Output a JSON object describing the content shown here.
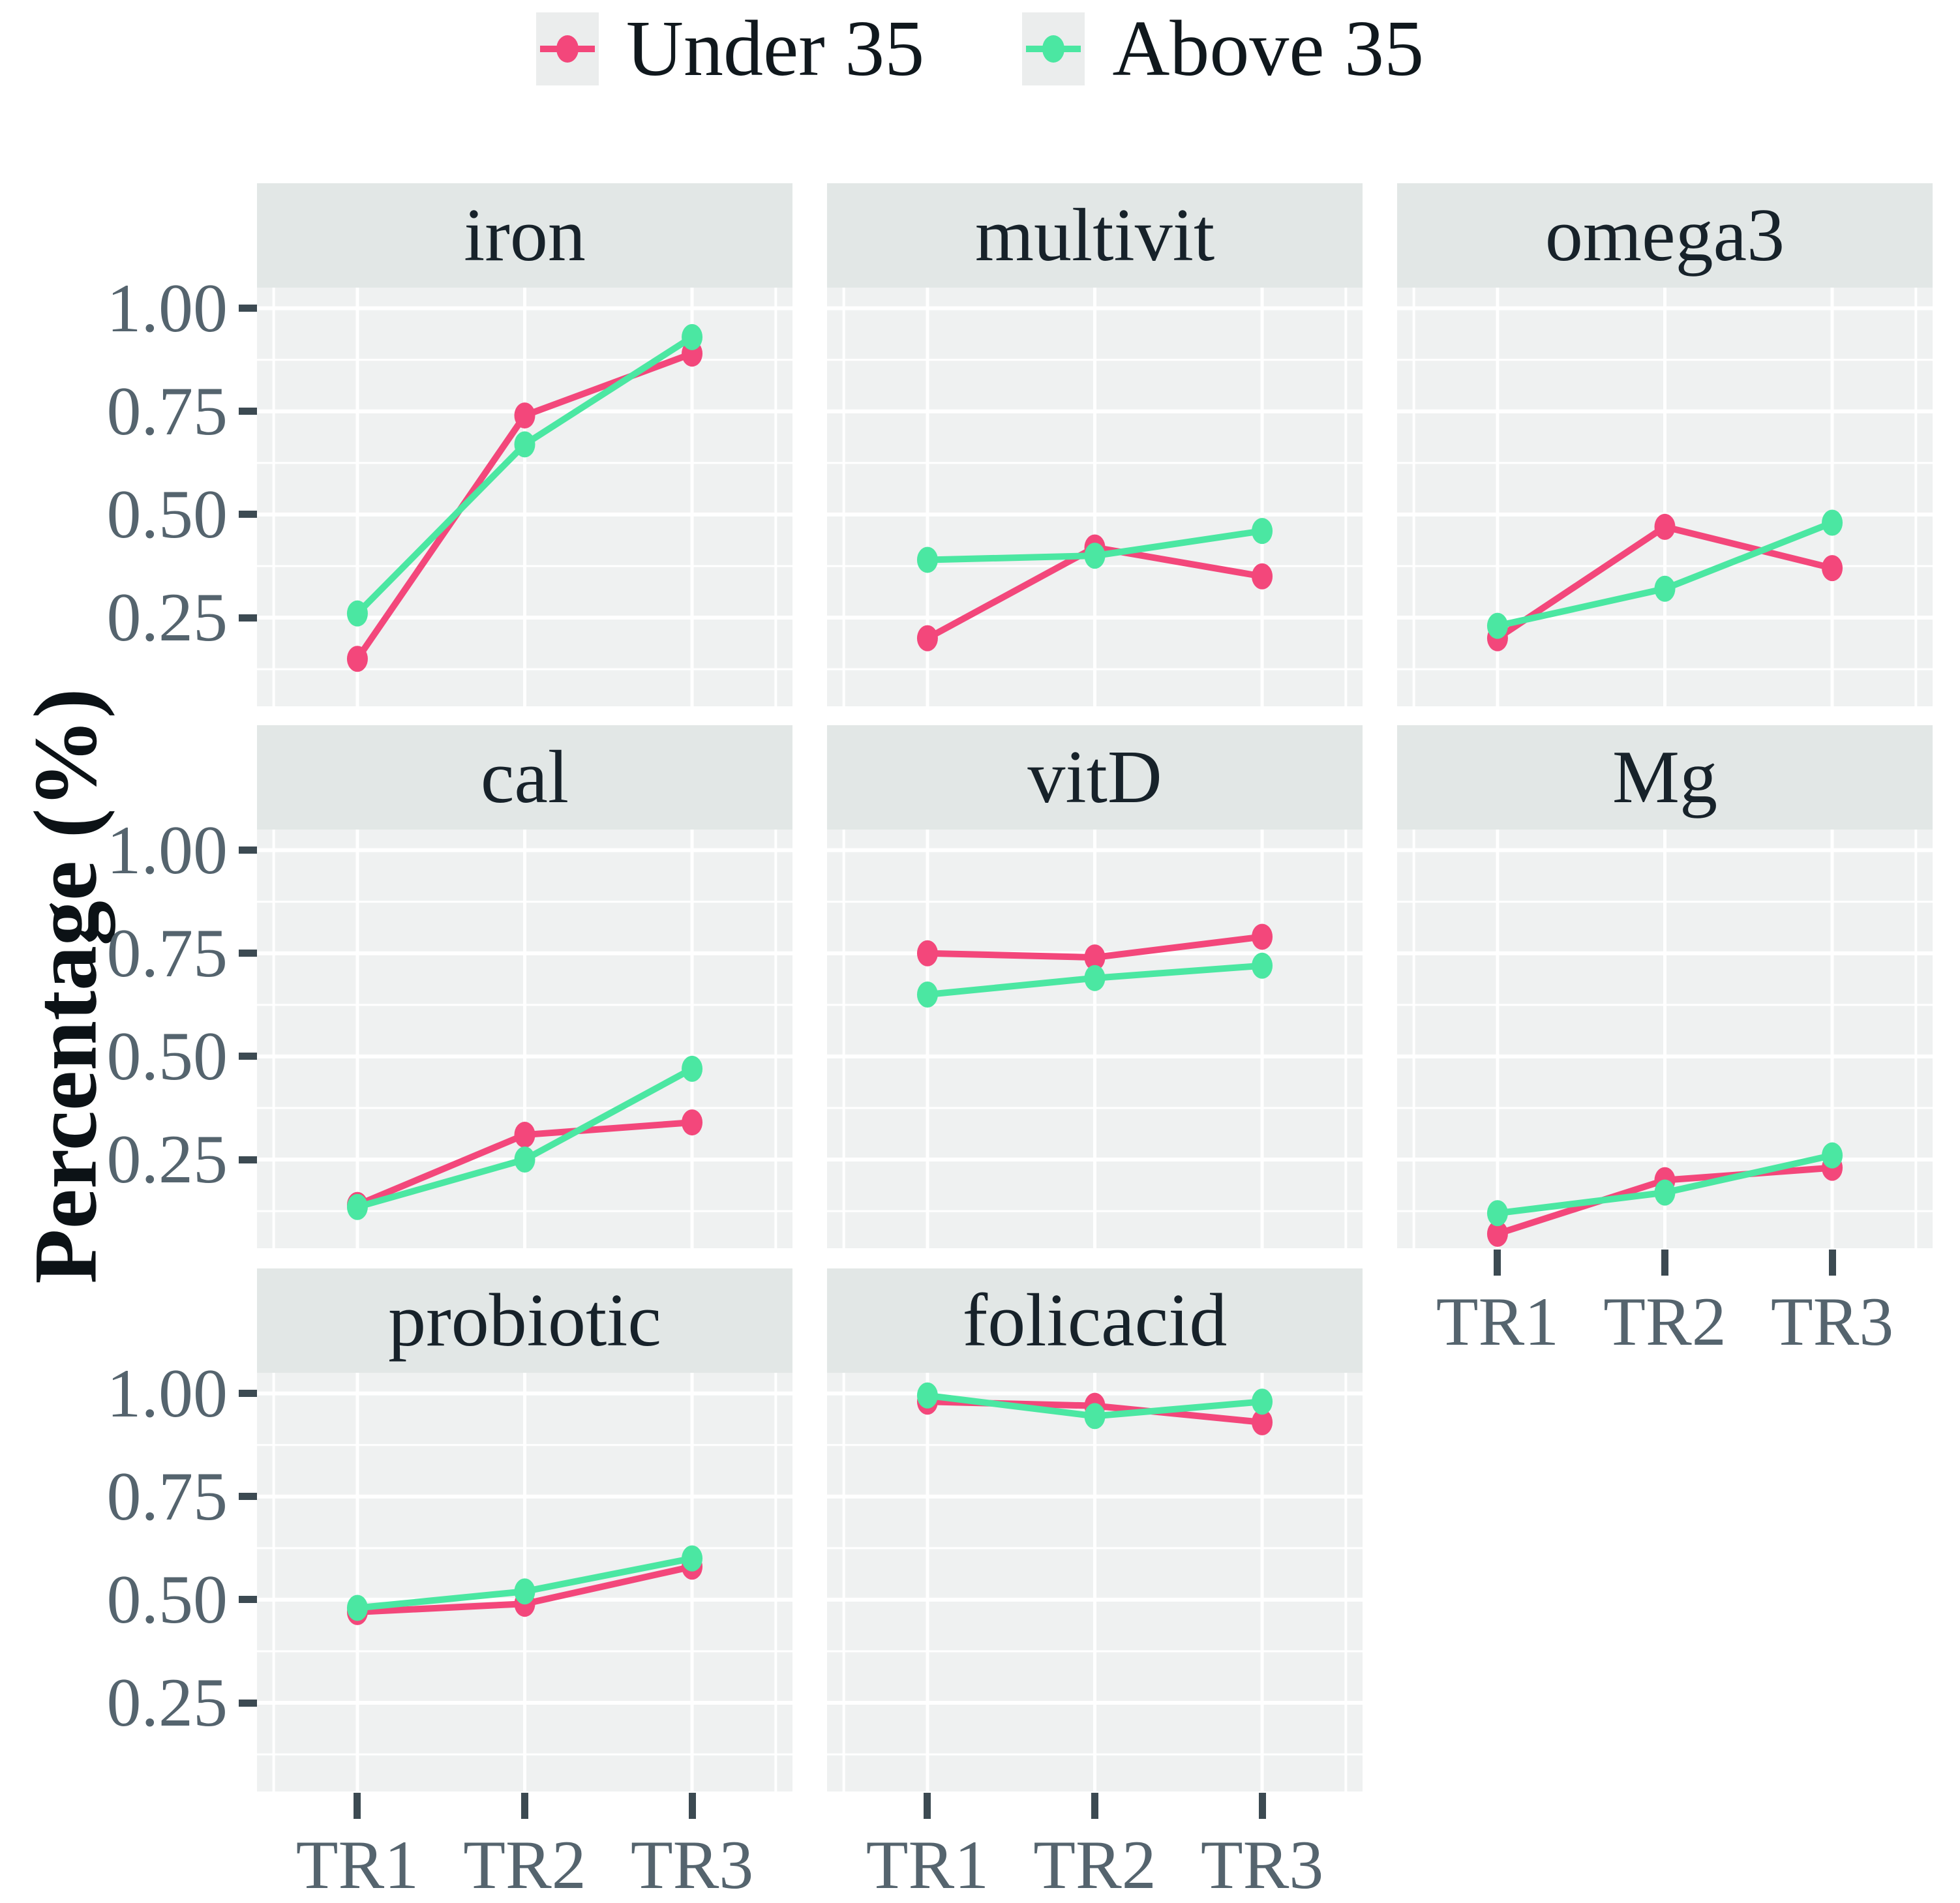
{
  "chart_data": {
    "type": "line",
    "title": "",
    "ylabel": "Percentage (%)",
    "xlabel": "",
    "categories": [
      "TR1",
      "TR2",
      "TR3"
    ],
    "y_axis": {
      "tick_values": [
        1.0,
        0.75,
        0.5,
        0.25
      ],
      "tick_labels": [
        "1.00",
        "0.75",
        "0.50",
        "0.25"
      ],
      "minor_gridlines": [
        0.875,
        0.625,
        0.375,
        0.125
      ],
      "range": [
        0.035,
        1.05
      ],
      "grid": true
    },
    "legend": {
      "position": "top-center",
      "entries": [
        {
          "label": "Under 35",
          "color": "#F3477B"
        },
        {
          "label": "Above 35",
          "color": "#4BE7A2"
        }
      ]
    },
    "facets": [
      {
        "title": "iron",
        "row": 0,
        "col": 0,
        "show_y_axis": true,
        "show_x_axis": false,
        "series": [
          {
            "name": "Under 35",
            "values": [
              0.15,
              0.74,
              0.89
            ]
          },
          {
            "name": "Above 35",
            "values": [
              0.26,
              0.67,
              0.93
            ]
          }
        ]
      },
      {
        "title": "multivit",
        "row": 0,
        "col": 1,
        "show_y_axis": false,
        "show_x_axis": false,
        "series": [
          {
            "name": "Under 35",
            "values": [
              0.2,
              0.42,
              0.35
            ]
          },
          {
            "name": "Above 35",
            "values": [
              0.39,
              0.4,
              0.46
            ]
          }
        ]
      },
      {
        "title": "omega3",
        "row": 0,
        "col": 2,
        "show_y_axis": false,
        "show_x_axis": false,
        "series": [
          {
            "name": "Under 35",
            "values": [
              0.2,
              0.47,
              0.37
            ]
          },
          {
            "name": "Above 35",
            "values": [
              0.23,
              0.32,
              0.48
            ]
          }
        ]
      },
      {
        "title": "cal",
        "row": 1,
        "col": 0,
        "show_y_axis": true,
        "show_x_axis": false,
        "series": [
          {
            "name": "Under 35",
            "values": [
              0.14,
              0.31,
              0.34
            ]
          },
          {
            "name": "Above 35",
            "values": [
              0.135,
              0.25,
              0.47
            ]
          }
        ]
      },
      {
        "title": "vitD",
        "row": 1,
        "col": 1,
        "show_y_axis": false,
        "show_x_axis": false,
        "series": [
          {
            "name": "Under 35",
            "values": [
              0.75,
              0.74,
              0.79
            ]
          },
          {
            "name": "Above 35",
            "values": [
              0.65,
              0.69,
              0.72
            ]
          }
        ]
      },
      {
        "title": "Mg",
        "row": 1,
        "col": 2,
        "show_y_axis": false,
        "show_x_axis": true,
        "series": [
          {
            "name": "Under 35",
            "values": [
              0.07,
              0.2,
              0.23
            ]
          },
          {
            "name": "Above 35",
            "values": [
              0.12,
              0.17,
              0.26
            ]
          }
        ]
      },
      {
        "title": "probiotic",
        "row": 2,
        "col": 0,
        "show_y_axis": true,
        "show_x_axis": true,
        "series": [
          {
            "name": "Under 35",
            "values": [
              0.47,
              0.49,
              0.58
            ]
          },
          {
            "name": "Above 35",
            "values": [
              0.48,
              0.52,
              0.6
            ]
          }
        ]
      },
      {
        "title": "folicacid",
        "row": 2,
        "col": 1,
        "show_y_axis": false,
        "show_x_axis": true,
        "series": [
          {
            "name": "Under 35",
            "values": [
              0.98,
              0.97,
              0.93
            ]
          },
          {
            "name": "Above 35",
            "values": [
              0.995,
              0.945,
              0.98
            ]
          }
        ]
      }
    ]
  },
  "colors": {
    "under35": "#F3477B",
    "above35": "#4BE7A2",
    "panel_bg": "#EFF1F1",
    "strip_bg": "#E2E7E6",
    "gridline": "#FFFFFF",
    "axis_text": "#55646E",
    "tick_mark": "#3C4A52",
    "text": "#10181d",
    "legend_key_bg": "#EBEDED",
    "background": "#FFFFFF"
  }
}
